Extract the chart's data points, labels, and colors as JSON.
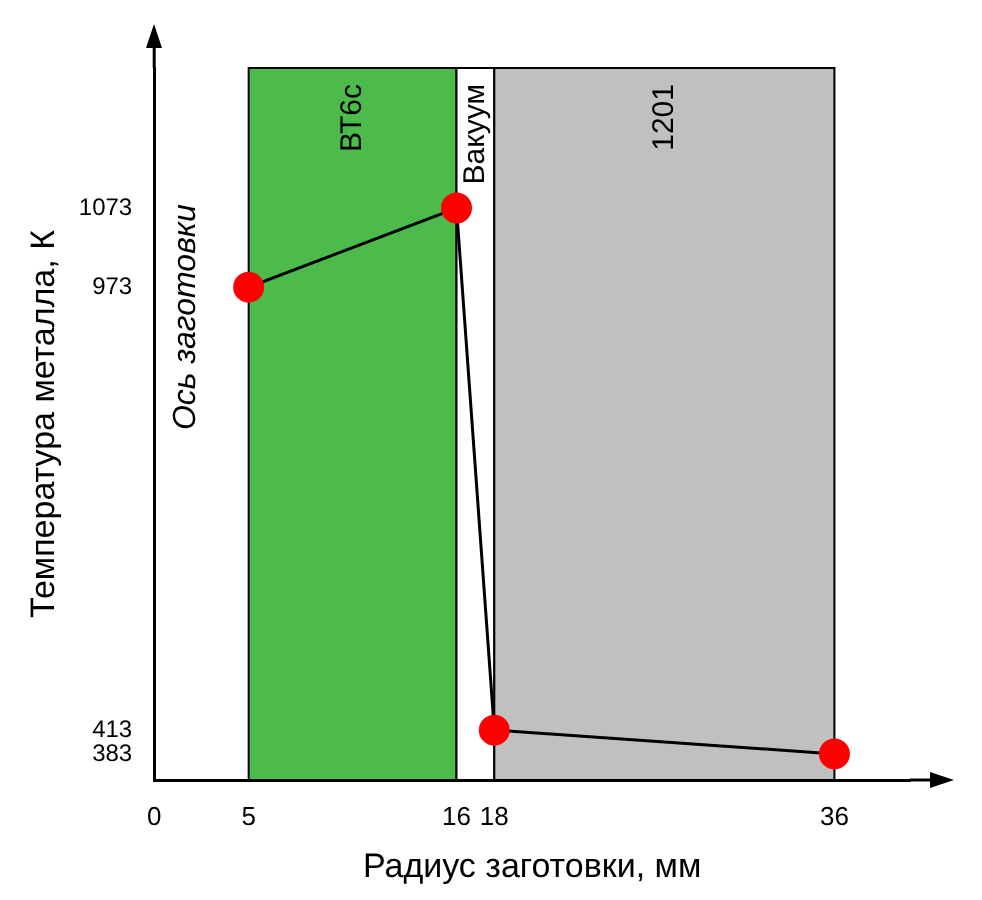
{
  "chart_data": {
    "type": "line",
    "xlabel": "Радиус заготовки, мм",
    "ylabel": "Температура металла, К",
    "annotations": [
      "Ось заготовки"
    ],
    "x": [
      5,
      16,
      18,
      36
    ],
    "series": [
      {
        "color": "#ff0000",
        "values": [
          973,
          1073,
          413,
          383
        ]
      }
    ],
    "xlim": [
      0,
      40
    ],
    "xticks": [
      0,
      5,
      16,
      18,
      36
    ],
    "ylim": [
      350,
      1250
    ],
    "yticks": [
      383,
      413,
      973,
      1073
    ],
    "bands": [
      {
        "axis": "x",
        "from": 5,
        "to": 16,
        "label": "ВТ6с",
        "color": "#4cbb4c"
      },
      {
        "axis": "x",
        "from": 16,
        "to": 18,
        "label": "Вакуум",
        "color": "#ffffff"
      },
      {
        "axis": "x",
        "from": 18,
        "to": 36,
        "label": "1201",
        "color": "#c0c0c0"
      }
    ],
    "grid": false,
    "legend": false,
    "marker": "circle",
    "line_style": "solid"
  }
}
